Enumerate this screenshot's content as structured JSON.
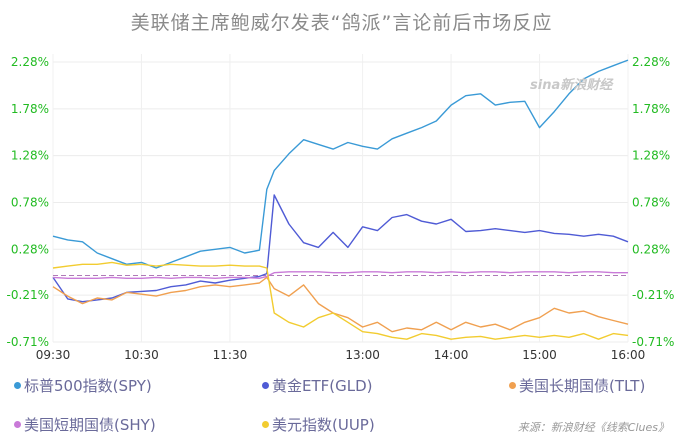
{
  "title": "美联储主席鲍威尔发表“鸽派”言论前后市场反应",
  "watermark": "sina新浪财经",
  "source": "来源：新浪财经《线索Clues》",
  "chart_data": {
    "type": "line",
    "title": "美联储主席鲍威尔发表“鸽派”言论前后市场反应",
    "x_ticks": [
      "09:30",
      "10:30",
      "11:30",
      "13:00",
      "14:00",
      "15:00",
      "16:00"
    ],
    "y_ticks": [
      "2.28%",
      "1.78%",
      "1.28%",
      "0.78%",
      "0.28%",
      "-0.21%",
      "-0.71%"
    ],
    "ylim": [
      -0.71,
      2.28
    ],
    "baseline": 0,
    "legend_position": "bottom",
    "series": [
      {
        "name": "标普500指数(SPY)",
        "color": "#3a9ad6",
        "x": [
          "09:30",
          "09:40",
          "09:50",
          "10:00",
          "10:10",
          "10:20",
          "10:30",
          "10:40",
          "10:50",
          "11:00",
          "11:10",
          "11:20",
          "11:30",
          "11:40",
          "11:50",
          "11:55",
          "12:00",
          "12:10",
          "12:20",
          "12:30",
          "12:40",
          "12:50",
          "13:00",
          "13:10",
          "13:20",
          "13:30",
          "13:40",
          "13:50",
          "14:00",
          "14:10",
          "14:20",
          "14:30",
          "14:40",
          "14:50",
          "15:00",
          "15:10",
          "15:20",
          "15:30",
          "15:40",
          "15:50",
          "16:00"
        ],
        "values": [
          0.42,
          0.38,
          0.36,
          0.24,
          0.18,
          0.12,
          0.14,
          0.08,
          0.14,
          0.2,
          0.26,
          0.28,
          0.3,
          0.24,
          0.27,
          0.92,
          1.12,
          1.3,
          1.45,
          1.4,
          1.35,
          1.42,
          1.38,
          1.35,
          1.46,
          1.52,
          1.58,
          1.65,
          1.82,
          1.92,
          1.94,
          1.82,
          1.85,
          1.86,
          1.58,
          1.75,
          1.94,
          2.1,
          2.18,
          2.24,
          2.3
        ]
      },
      {
        "name": "黄金ETF(GLD)",
        "color": "#4f5bd5",
        "x": [
          "09:30",
          "09:40",
          "09:50",
          "10:00",
          "10:10",
          "10:20",
          "10:30",
          "10:40",
          "10:50",
          "11:00",
          "11:10",
          "11:20",
          "11:30",
          "11:40",
          "11:50",
          "11:55",
          "12:00",
          "12:10",
          "12:20",
          "12:30",
          "12:40",
          "12:50",
          "13:00",
          "13:10",
          "13:20",
          "13:30",
          "13:40",
          "13:50",
          "14:00",
          "14:10",
          "14:20",
          "14:30",
          "14:40",
          "14:50",
          "15:00",
          "15:10",
          "15:20",
          "15:30",
          "15:40",
          "15:50",
          "16:00"
        ],
        "values": [
          -0.02,
          -0.25,
          -0.28,
          -0.26,
          -0.24,
          -0.18,
          -0.17,
          -0.16,
          -0.12,
          -0.1,
          -0.06,
          -0.08,
          -0.05,
          -0.03,
          -0.01,
          0.02,
          0.86,
          0.55,
          0.35,
          0.3,
          0.46,
          0.3,
          0.52,
          0.48,
          0.62,
          0.65,
          0.58,
          0.55,
          0.6,
          0.47,
          0.48,
          0.5,
          0.48,
          0.46,
          0.48,
          0.45,
          0.44,
          0.42,
          0.44,
          0.42,
          0.36
        ]
      },
      {
        "name": "美国长期国债(TLT)",
        "color": "#f0a050",
        "x": [
          "09:30",
          "09:40",
          "09:50",
          "10:00",
          "10:10",
          "10:20",
          "10:30",
          "10:40",
          "10:50",
          "11:00",
          "11:10",
          "11:20",
          "11:30",
          "11:40",
          "11:50",
          "11:55",
          "12:00",
          "12:10",
          "12:20",
          "12:30",
          "12:40",
          "12:50",
          "13:00",
          "13:10",
          "13:20",
          "13:30",
          "13:40",
          "13:50",
          "14:00",
          "14:10",
          "14:20",
          "14:30",
          "14:40",
          "14:50",
          "15:00",
          "15:10",
          "15:20",
          "15:30",
          "15:40",
          "15:50",
          "16:00"
        ],
        "values": [
          -0.12,
          -0.22,
          -0.3,
          -0.24,
          -0.26,
          -0.18,
          -0.2,
          -0.22,
          -0.18,
          -0.16,
          -0.12,
          -0.1,
          -0.12,
          -0.1,
          -0.08,
          -0.02,
          -0.14,
          -0.22,
          -0.1,
          -0.3,
          -0.4,
          -0.45,
          -0.55,
          -0.5,
          -0.6,
          -0.56,
          -0.58,
          -0.5,
          -0.58,
          -0.5,
          -0.55,
          -0.52,
          -0.58,
          -0.5,
          -0.45,
          -0.35,
          -0.4,
          -0.38,
          -0.44,
          -0.48,
          -0.52
        ]
      },
      {
        "name": "美国短期国债(SHY)",
        "color": "#c97ad8",
        "x": [
          "09:30",
          "09:40",
          "09:50",
          "10:00",
          "10:10",
          "10:20",
          "10:30",
          "10:40",
          "10:50",
          "11:00",
          "11:10",
          "11:20",
          "11:30",
          "11:40",
          "11:50",
          "11:55",
          "12:00",
          "12:10",
          "12:20",
          "12:30",
          "12:40",
          "12:50",
          "13:00",
          "13:10",
          "13:20",
          "13:30",
          "13:40",
          "13:50",
          "14:00",
          "14:10",
          "14:20",
          "14:30",
          "14:40",
          "14:50",
          "15:00",
          "15:10",
          "15:20",
          "15:30",
          "15:40",
          "15:50",
          "16:00"
        ],
        "values": [
          -0.02,
          -0.03,
          -0.03,
          -0.03,
          -0.02,
          -0.03,
          -0.03,
          -0.02,
          -0.03,
          -0.02,
          -0.02,
          -0.03,
          -0.02,
          -0.02,
          -0.03,
          -0.01,
          0.03,
          0.04,
          0.04,
          0.04,
          0.03,
          0.03,
          0.04,
          0.04,
          0.03,
          0.04,
          0.04,
          0.03,
          0.04,
          0.03,
          0.04,
          0.04,
          0.03,
          0.04,
          0.04,
          0.04,
          0.03,
          0.04,
          0.04,
          0.03,
          0.03
        ]
      },
      {
        "name": "美元指数(UUP)",
        "color": "#f2cc30",
        "x": [
          "09:30",
          "09:40",
          "09:50",
          "10:00",
          "10:10",
          "10:20",
          "10:30",
          "10:40",
          "10:50",
          "11:00",
          "11:10",
          "11:20",
          "11:30",
          "11:40",
          "11:50",
          "11:55",
          "12:00",
          "12:10",
          "12:20",
          "12:30",
          "12:40",
          "12:50",
          "13:00",
          "13:10",
          "13:20",
          "13:30",
          "13:40",
          "13:50",
          "14:00",
          "14:10",
          "14:20",
          "14:30",
          "14:40",
          "14:50",
          "15:00",
          "15:10",
          "15:20",
          "15:30",
          "15:40",
          "15:50",
          "16:00"
        ],
        "values": [
          0.08,
          0.1,
          0.12,
          0.12,
          0.14,
          0.11,
          0.12,
          0.1,
          0.12,
          0.11,
          0.1,
          0.1,
          0.11,
          0.1,
          0.1,
          0.08,
          -0.4,
          -0.5,
          -0.55,
          -0.45,
          -0.4,
          -0.5,
          -0.6,
          -0.62,
          -0.66,
          -0.68,
          -0.62,
          -0.64,
          -0.68,
          -0.66,
          -0.65,
          -0.68,
          -0.66,
          -0.64,
          -0.66,
          -0.64,
          -0.66,
          -0.62,
          -0.68,
          -0.62,
          -0.64
        ]
      }
    ]
  }
}
